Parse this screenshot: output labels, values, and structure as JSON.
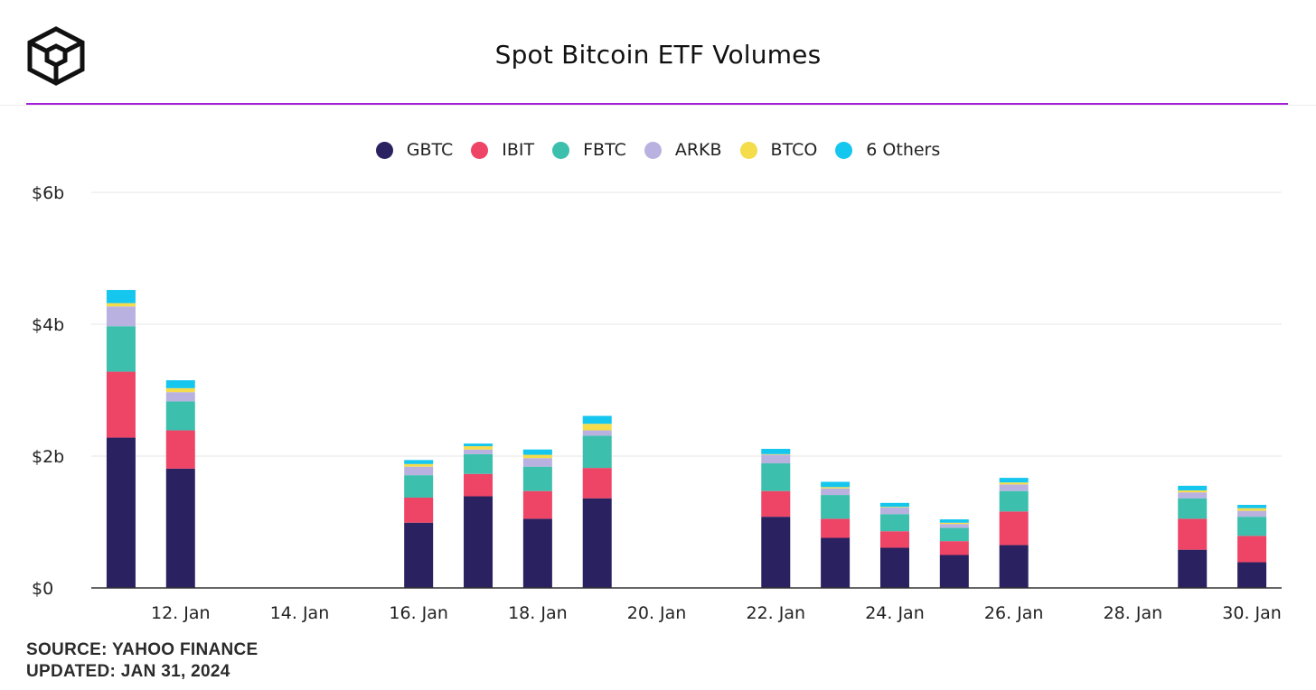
{
  "header": {
    "title": "Spot Bitcoin ETF Volumes",
    "logo_icon": "cube-logo-icon",
    "accent_color": "#a31fd6"
  },
  "footer": {
    "source": "SOURCE: YAHOO FINANCE",
    "updated": "UPDATED: JAN 31, 2024"
  },
  "chart_data": {
    "type": "bar",
    "stacked": true,
    "title": "Spot Bitcoin ETF Volumes",
    "xlabel": "",
    "ylabel": "",
    "ylim": [
      0,
      6
    ],
    "y_unit": "b",
    "yticks": [
      {
        "value": 0,
        "label": "$0"
      },
      {
        "value": 2,
        "label": "$2b"
      },
      {
        "value": 4,
        "label": "$4b"
      },
      {
        "value": 6,
        "label": "$6b"
      }
    ],
    "x_day_range": [
      10.5,
      30.5
    ],
    "xticks": [
      {
        "day": 12,
        "label": "12. Jan"
      },
      {
        "day": 14,
        "label": "14. Jan"
      },
      {
        "day": 16,
        "label": "16. Jan"
      },
      {
        "day": 18,
        "label": "18. Jan"
      },
      {
        "day": 20,
        "label": "20. Jan"
      },
      {
        "day": 22,
        "label": "22. Jan"
      },
      {
        "day": 24,
        "label": "24. Jan"
      },
      {
        "day": 26,
        "label": "26. Jan"
      },
      {
        "day": 28,
        "label": "28. Jan"
      },
      {
        "day": 30,
        "label": "30. Jan"
      }
    ],
    "grid": true,
    "legend_position": "top-center",
    "categories": [
      "11. Jan",
      "12. Jan",
      "16. Jan",
      "17. Jan",
      "18. Jan",
      "19. Jan",
      "22. Jan",
      "23. Jan",
      "24. Jan",
      "25. Jan",
      "26. Jan",
      "29. Jan",
      "30. Jan"
    ],
    "days": [
      11,
      12,
      16,
      17,
      18,
      19,
      22,
      23,
      24,
      25,
      26,
      29,
      30
    ],
    "series": [
      {
        "name": "GBTC",
        "color": "#2a2160",
        "values": [
          2.28,
          1.81,
          0.99,
          1.39,
          1.05,
          1.36,
          1.08,
          0.76,
          0.61,
          0.5,
          0.65,
          0.58,
          0.39
        ]
      },
      {
        "name": "IBIT",
        "color": "#ee4466",
        "values": [
          1.0,
          0.58,
          0.38,
          0.34,
          0.42,
          0.46,
          0.39,
          0.29,
          0.25,
          0.21,
          0.51,
          0.47,
          0.4
        ]
      },
      {
        "name": "FBTC",
        "color": "#3cbfad",
        "values": [
          0.69,
          0.44,
          0.34,
          0.3,
          0.37,
          0.49,
          0.42,
          0.36,
          0.26,
          0.2,
          0.31,
          0.31,
          0.29
        ]
      },
      {
        "name": "ARKB",
        "color": "#b9b2e0",
        "values": [
          0.3,
          0.14,
          0.13,
          0.07,
          0.13,
          0.08,
          0.13,
          0.1,
          0.1,
          0.06,
          0.1,
          0.09,
          0.09
        ]
      },
      {
        "name": "BTCO",
        "color": "#f5dc4a",
        "values": [
          0.05,
          0.06,
          0.04,
          0.05,
          0.05,
          0.1,
          0.01,
          0.02,
          0.01,
          0.02,
          0.03,
          0.03,
          0.04
        ]
      },
      {
        "name": "6 Others",
        "color": "#15c6ee",
        "values": [
          0.2,
          0.12,
          0.06,
          0.04,
          0.08,
          0.12,
          0.08,
          0.08,
          0.06,
          0.05,
          0.07,
          0.07,
          0.05
        ]
      }
    ]
  }
}
